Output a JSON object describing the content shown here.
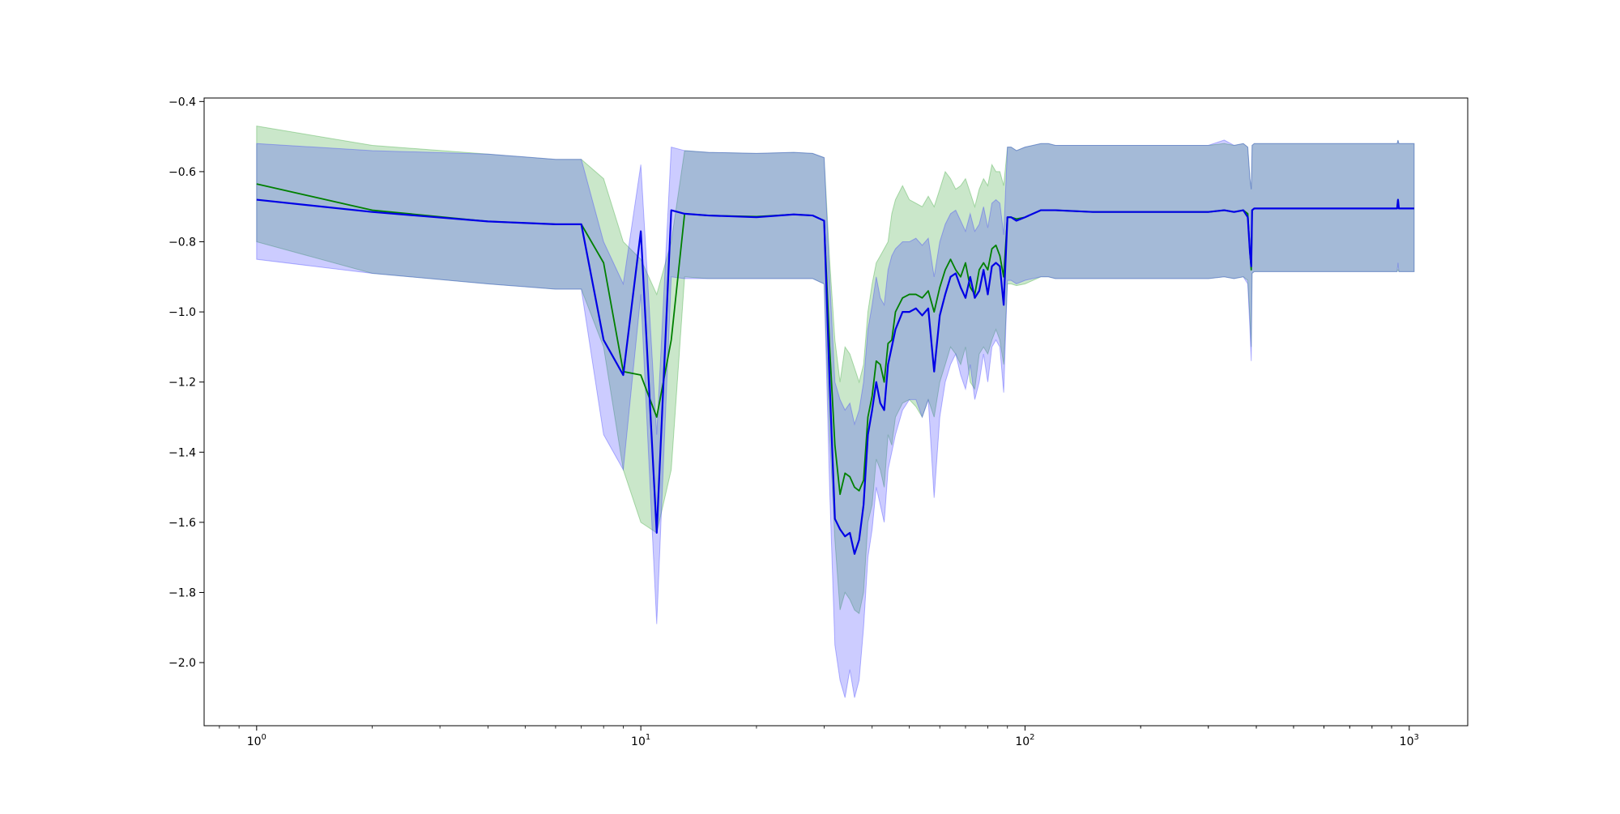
{
  "chart_data": {
    "type": "line",
    "title": "",
    "xlabel": "",
    "ylabel": "",
    "xscale": "log",
    "xlim": [
      0.73,
      1420
    ],
    "ylim": [
      -2.18,
      -0.39
    ],
    "grid": false,
    "legend": "none",
    "x_tick_labels": [
      {
        "value": 1,
        "base": "10",
        "exp": "0"
      },
      {
        "value": 10,
        "base": "10",
        "exp": "1"
      },
      {
        "value": 100,
        "base": "10",
        "exp": "2"
      },
      {
        "value": 1000,
        "base": "10",
        "exp": "3"
      }
    ],
    "y_ticks": [
      -0.4,
      -0.6,
      -0.8,
      -1.0,
      -1.2,
      -1.4,
      -1.6,
      -1.8,
      -2.0
    ],
    "y_tick_labels": [
      "−0.4",
      "−0.6",
      "−0.8",
      "−1.0",
      "−1.2",
      "−1.4",
      "−1.6",
      "−1.8",
      "−2.0"
    ],
    "series": [
      {
        "color": "#008000",
        "band_color": "#2ca02c",
        "x": [
          1,
          2,
          4,
          6,
          7,
          8,
          9,
          10,
          11,
          12,
          13,
          15,
          20,
          25,
          28,
          30,
          31,
          32,
          33,
          34,
          35,
          36,
          37,
          38,
          39,
          40,
          41,
          42,
          43,
          44,
          45,
          46,
          48,
          50,
          52,
          54,
          56,
          58,
          60,
          62,
          64,
          66,
          68,
          70,
          72,
          74,
          76,
          78,
          80,
          82,
          84,
          86,
          88,
          90,
          92,
          95,
          100,
          110,
          115,
          120,
          150,
          200,
          300,
          330,
          350,
          370,
          380,
          385,
          388,
          390,
          395,
          400,
          500,
          600,
          700,
          800,
          900,
          930,
          935,
          940,
          1000,
          1030
        ],
        "mean": [
          -0.635,
          -0.71,
          -0.742,
          -0.75,
          -0.75,
          -0.86,
          -1.17,
          -1.18,
          -1.3,
          -1.08,
          -0.72,
          -0.725,
          -0.728,
          -0.722,
          -0.725,
          -0.74,
          -1.1,
          -1.38,
          -1.52,
          -1.46,
          -1.47,
          -1.5,
          -1.51,
          -1.48,
          -1.3,
          -1.24,
          -1.14,
          -1.15,
          -1.2,
          -1.09,
          -1.08,
          -1.0,
          -0.96,
          -0.95,
          -0.95,
          -0.96,
          -0.94,
          -1.0,
          -0.93,
          -0.88,
          -0.85,
          -0.88,
          -0.9,
          -0.86,
          -0.93,
          -0.95,
          -0.88,
          -0.86,
          -0.88,
          -0.82,
          -0.81,
          -0.84,
          -0.9,
          -0.73,
          -0.73,
          -0.735,
          -0.73,
          -0.71,
          -0.71,
          -0.71,
          -0.715,
          -0.715,
          -0.715,
          -0.71,
          -0.715,
          -0.71,
          -0.72,
          -0.83,
          -0.88,
          -0.71,
          -0.705,
          -0.705,
          -0.705,
          -0.705,
          -0.705,
          -0.705,
          -0.705,
          -0.705,
          -0.68,
          -0.705,
          -0.705,
          -0.705
        ],
        "upper": [
          -0.47,
          -0.525,
          -0.55,
          -0.565,
          -0.565,
          -0.62,
          -0.8,
          -0.85,
          -0.95,
          -0.8,
          -0.54,
          -0.545,
          -0.548,
          -0.545,
          -0.548,
          -0.56,
          -0.85,
          -1.08,
          -1.2,
          -1.1,
          -1.12,
          -1.16,
          -1.2,
          -1.15,
          -1.0,
          -0.92,
          -0.86,
          -0.84,
          -0.82,
          -0.8,
          -0.72,
          -0.68,
          -0.64,
          -0.68,
          -0.69,
          -0.7,
          -0.67,
          -0.7,
          -0.65,
          -0.6,
          -0.62,
          -0.65,
          -0.64,
          -0.62,
          -0.66,
          -0.7,
          -0.65,
          -0.62,
          -0.64,
          -0.58,
          -0.6,
          -0.6,
          -0.64,
          -0.53,
          -0.53,
          -0.54,
          -0.53,
          -0.52,
          -0.52,
          -0.525,
          -0.525,
          -0.525,
          -0.525,
          -0.52,
          -0.525,
          -0.52,
          -0.53,
          -0.62,
          -0.65,
          -0.525,
          -0.52,
          -0.52,
          -0.52,
          -0.52,
          -0.52,
          -0.52,
          -0.52,
          -0.52,
          -0.51,
          -0.52,
          -0.52,
          -0.52
        ],
        "lower": [
          -0.8,
          -0.89,
          -0.92,
          -0.935,
          -0.935,
          -1.1,
          -1.45,
          -1.6,
          -1.63,
          -1.45,
          -0.9,
          -0.905,
          -0.905,
          -0.905,
          -0.905,
          -0.92,
          -1.35,
          -1.65,
          -1.85,
          -1.8,
          -1.82,
          -1.85,
          -1.86,
          -1.8,
          -1.6,
          -1.55,
          -1.42,
          -1.45,
          -1.5,
          -1.35,
          -1.38,
          -1.3,
          -1.26,
          -1.25,
          -1.27,
          -1.3,
          -1.25,
          -1.3,
          -1.2,
          -1.15,
          -1.1,
          -1.12,
          -1.15,
          -1.1,
          -1.2,
          -1.22,
          -1.12,
          -1.1,
          -1.12,
          -1.08,
          -1.05,
          -1.08,
          -1.15,
          -0.92,
          -0.92,
          -0.925,
          -0.92,
          -0.9,
          -0.9,
          -0.905,
          -0.905,
          -0.905,
          -0.905,
          -0.9,
          -0.905,
          -0.9,
          -0.91,
          -1.02,
          -1.1,
          -0.89,
          -0.885,
          -0.885,
          -0.885,
          -0.885,
          -0.885,
          -0.885,
          -0.885,
          -0.885,
          -0.88,
          -0.885,
          -0.885,
          -0.885
        ]
      },
      {
        "color": "#0000e6",
        "band_color": "#3333ff",
        "x": [
          1,
          2,
          4,
          6,
          7,
          8,
          9,
          10,
          11,
          12,
          13,
          15,
          20,
          25,
          28,
          30,
          31,
          32,
          33,
          34,
          35,
          36,
          37,
          38,
          39,
          40,
          41,
          42,
          43,
          44,
          45,
          46,
          48,
          50,
          52,
          54,
          56,
          58,
          60,
          62,
          64,
          66,
          68,
          70,
          72,
          74,
          76,
          78,
          80,
          82,
          84,
          86,
          88,
          90,
          92,
          95,
          100,
          110,
          115,
          120,
          150,
          200,
          300,
          330,
          350,
          370,
          380,
          385,
          388,
          390,
          395,
          400,
          500,
          600,
          700,
          800,
          900,
          930,
          935,
          940,
          1000,
          1030
        ],
        "mean": [
          -0.68,
          -0.715,
          -0.742,
          -0.75,
          -0.75,
          -1.08,
          -1.18,
          -0.77,
          -1.63,
          -0.71,
          -0.72,
          -0.725,
          -0.73,
          -0.722,
          -0.725,
          -0.74,
          -1.2,
          -1.59,
          -1.62,
          -1.64,
          -1.63,
          -1.69,
          -1.65,
          -1.55,
          -1.35,
          -1.28,
          -1.2,
          -1.26,
          -1.28,
          -1.15,
          -1.1,
          -1.05,
          -1.0,
          -1.0,
          -0.99,
          -1.01,
          -0.99,
          -1.17,
          -1.01,
          -0.95,
          -0.9,
          -0.89,
          -0.93,
          -0.96,
          -0.9,
          -0.96,
          -0.94,
          -0.88,
          -0.95,
          -0.87,
          -0.86,
          -0.87,
          -0.98,
          -0.73,
          -0.73,
          -0.74,
          -0.73,
          -0.71,
          -0.71,
          -0.71,
          -0.715,
          -0.715,
          -0.715,
          -0.71,
          -0.715,
          -0.71,
          -0.73,
          -0.83,
          -0.87,
          -0.71,
          -0.705,
          -0.705,
          -0.705,
          -0.705,
          -0.705,
          -0.705,
          -0.705,
          -0.705,
          -0.68,
          -0.705,
          -0.705,
          -0.705
        ],
        "upper": [
          -0.52,
          -0.54,
          -0.55,
          -0.565,
          -0.565,
          -0.8,
          -0.92,
          -0.58,
          -1.35,
          -0.53,
          -0.54,
          -0.545,
          -0.548,
          -0.545,
          -0.548,
          -0.56,
          -0.9,
          -1.2,
          -1.25,
          -1.28,
          -1.26,
          -1.32,
          -1.28,
          -1.2,
          -1.05,
          -0.98,
          -0.9,
          -0.96,
          -0.98,
          -0.88,
          -0.84,
          -0.82,
          -0.8,
          -0.8,
          -0.79,
          -0.81,
          -0.79,
          -0.9,
          -0.8,
          -0.75,
          -0.72,
          -0.71,
          -0.74,
          -0.77,
          -0.72,
          -0.77,
          -0.75,
          -0.7,
          -0.76,
          -0.69,
          -0.68,
          -0.69,
          -0.78,
          -0.53,
          -0.53,
          -0.54,
          -0.53,
          -0.52,
          -0.52,
          -0.525,
          -0.525,
          -0.525,
          -0.525,
          -0.51,
          -0.525,
          -0.52,
          -0.53,
          -0.62,
          -0.65,
          -0.525,
          -0.52,
          -0.52,
          -0.52,
          -0.52,
          -0.52,
          -0.52,
          -0.52,
          -0.52,
          -0.51,
          -0.52,
          -0.52,
          -0.52
        ],
        "lower": [
          -0.85,
          -0.89,
          -0.92,
          -0.935,
          -0.935,
          -1.35,
          -1.45,
          -0.95,
          -1.89,
          -0.9,
          -0.905,
          -0.905,
          -0.905,
          -0.905,
          -0.905,
          -0.92,
          -1.5,
          -1.95,
          -2.05,
          -2.1,
          -2.02,
          -2.1,
          -2.05,
          -1.9,
          -1.7,
          -1.62,
          -1.5,
          -1.55,
          -1.6,
          -1.45,
          -1.4,
          -1.35,
          -1.28,
          -1.25,
          -1.25,
          -1.3,
          -1.25,
          -1.53,
          -1.3,
          -1.2,
          -1.15,
          -1.12,
          -1.18,
          -1.22,
          -1.15,
          -1.25,
          -1.2,
          -1.12,
          -1.2,
          -1.1,
          -1.08,
          -1.1,
          -1.23,
          -0.91,
          -0.91,
          -0.92,
          -0.91,
          -0.9,
          -0.9,
          -0.905,
          -0.905,
          -0.905,
          -0.905,
          -0.9,
          -0.905,
          -0.9,
          -0.92,
          -1.05,
          -1.14,
          -0.89,
          -0.885,
          -0.885,
          -0.885,
          -0.885,
          -0.885,
          -0.885,
          -0.885,
          -0.885,
          -0.86,
          -0.885,
          -0.885,
          -0.885
        ]
      }
    ]
  }
}
